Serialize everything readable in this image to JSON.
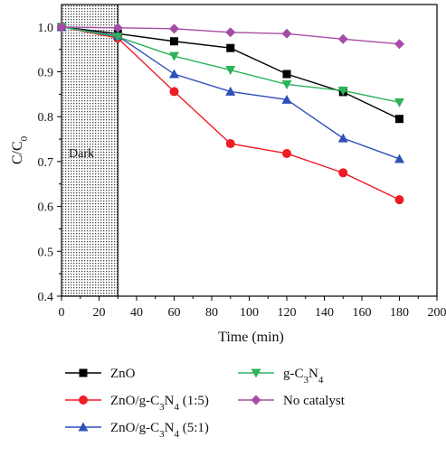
{
  "chart_data": {
    "type": "line",
    "xlabel": "Time (min)",
    "ylabel": "C/C",
    "ylabel_subscript": "0",
    "xlim": [
      0,
      200
    ],
    "ylim": [
      0.4,
      1.05
    ],
    "x_ticks": [
      0,
      20,
      40,
      60,
      80,
      100,
      120,
      140,
      160,
      180,
      200
    ],
    "y_ticks": [
      0.4,
      0.5,
      0.6,
      0.7,
      0.8,
      0.9,
      1.0
    ],
    "grid": false,
    "legend_position": "bottom",
    "annotations": [
      {
        "text": "Dark",
        "x_range": [
          0,
          30
        ],
        "fill": "dotted"
      }
    ],
    "x": [
      0,
      30,
      60,
      90,
      120,
      150,
      180
    ],
    "series": [
      {
        "name": "ZnO",
        "legend_parts": [
          "ZnO"
        ],
        "color": "#000000",
        "marker": "square",
        "values": [
          1.0,
          0.985,
          0.968,
          0.953,
          0.895,
          0.855,
          0.795
        ]
      },
      {
        "name": "ZnO/g-C3N4 (1:5)",
        "legend_parts": [
          "ZnO/g-C",
          "3",
          "N",
          "4",
          " (1:5)"
        ],
        "color": "#ee1c25",
        "marker": "circle",
        "values": [
          1.0,
          0.975,
          0.856,
          0.74,
          0.718,
          0.675,
          0.615
        ]
      },
      {
        "name": "ZnO/g-C3N4 (5:1)",
        "legend_parts": [
          "ZnO/g-C",
          "3",
          "N",
          "4",
          " (5:1)"
        ],
        "color": "#3050b8",
        "marker": "triangle-up",
        "values": [
          1.0,
          0.98,
          0.895,
          0.856,
          0.838,
          0.752,
          0.706
        ]
      },
      {
        "name": "g-C3N4",
        "legend_parts": [
          "g-C",
          "3",
          "N",
          "4"
        ],
        "color": "#2db35a",
        "marker": "triangle-down",
        "values": [
          1.0,
          0.978,
          0.935,
          0.904,
          0.872,
          0.858,
          0.832
        ]
      },
      {
        "name": "No catalyst",
        "legend_parts": [
          "No catalyst"
        ],
        "color": "#a64ca6",
        "marker": "diamond",
        "values": [
          1.0,
          0.998,
          0.996,
          0.988,
          0.985,
          0.973,
          0.962
        ]
      }
    ]
  }
}
